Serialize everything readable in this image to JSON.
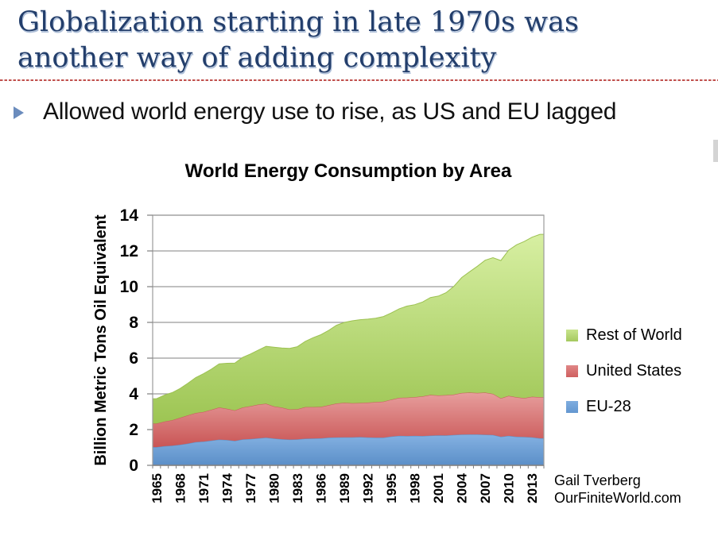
{
  "slide": {
    "title_line1": "Globalization starting in late 1970s was",
    "title_line2": "another way of adding complexity",
    "bullet": "Allowed world energy use to rise, as US and EU lagged",
    "accent_colors": {
      "title_text": "#233e6b",
      "separator_dash": "#c0504d",
      "bullet_marker": "#6b8cbd"
    }
  },
  "chart": {
    "title": "World Energy Consumption by Area",
    "y_axis_label": "Billion Metric Tons Oil Equivalent",
    "legend": [
      {
        "label": "Rest of World",
        "color_top": "#c8e48d",
        "color_bottom": "#a5c95e"
      },
      {
        "label": "United States",
        "color_top": "#e08686",
        "color_bottom": "#cf5f5f"
      },
      {
        "label": "EU-28",
        "color_top": "#7fade0",
        "color_bottom": "#6397d0"
      }
    ],
    "attribution_line1": "Gail Tverberg",
    "attribution_line2": "OurFiniteWorld.com"
  },
  "chart_data": {
    "type": "area",
    "stacked": true,
    "title": "World Energy Consumption by Area",
    "xlabel": "",
    "ylabel": "Billion Metric Tons Oil Equivalent",
    "ylim": [
      0,
      14
    ],
    "ytick_interval": 2,
    "grid": true,
    "legend_position": "right",
    "x": [
      1965,
      1966,
      1967,
      1968,
      1969,
      1970,
      1971,
      1972,
      1973,
      1974,
      1975,
      1976,
      1977,
      1978,
      1979,
      1980,
      1981,
      1982,
      1983,
      1984,
      1985,
      1986,
      1987,
      1988,
      1989,
      1990,
      1991,
      1992,
      1993,
      1994,
      1995,
      1996,
      1997,
      1998,
      1999,
      2000,
      2001,
      2002,
      2003,
      2004,
      2005,
      2006,
      2007,
      2008,
      2009,
      2010,
      2011,
      2012,
      2013,
      2014
    ],
    "xtick_labels": [
      "1965",
      "1968",
      "1971",
      "1974",
      "1977",
      "1980",
      "1983",
      "1986",
      "1989",
      "1992",
      "1995",
      "1998",
      "2001",
      "2004",
      "2007",
      "2010",
      "2013"
    ],
    "xtick_every": 3,
    "series": [
      {
        "name": "EU-28",
        "color": "#6fa2d8",
        "color_top": "#84b1e2",
        "color_bottom": "#5b8fc8",
        "edge": "#5c90c7",
        "values": [
          1.02,
          1.07,
          1.1,
          1.15,
          1.22,
          1.3,
          1.33,
          1.38,
          1.44,
          1.42,
          1.37,
          1.45,
          1.47,
          1.51,
          1.55,
          1.5,
          1.46,
          1.44,
          1.45,
          1.49,
          1.5,
          1.51,
          1.55,
          1.56,
          1.57,
          1.57,
          1.58,
          1.56,
          1.55,
          1.55,
          1.61,
          1.65,
          1.64,
          1.65,
          1.64,
          1.66,
          1.68,
          1.67,
          1.7,
          1.72,
          1.73,
          1.73,
          1.71,
          1.7,
          1.6,
          1.65,
          1.6,
          1.59,
          1.57,
          1.51
        ]
      },
      {
        "name": "United States",
        "color": "#d96a6a",
        "color_top": "#e79e9d",
        "color_bottom": "#c95555",
        "edge": "#c75a59",
        "values": [
          1.32,
          1.38,
          1.43,
          1.51,
          1.58,
          1.63,
          1.66,
          1.73,
          1.8,
          1.75,
          1.7,
          1.79,
          1.84,
          1.89,
          1.9,
          1.8,
          1.77,
          1.69,
          1.69,
          1.77,
          1.76,
          1.76,
          1.82,
          1.9,
          1.93,
          1.91,
          1.91,
          1.95,
          1.99,
          2.02,
          2.07,
          2.13,
          2.15,
          2.17,
          2.22,
          2.28,
          2.23,
          2.26,
          2.26,
          2.33,
          2.34,
          2.32,
          2.36,
          2.3,
          2.15,
          2.24,
          2.21,
          2.17,
          2.27,
          2.3
        ]
      },
      {
        "name": "Rest of World",
        "color": "#a9cd68",
        "color_top": "#d7efa2",
        "color_bottom": "#9dc553",
        "edge": "#9cc151",
        "values": [
          1.39,
          1.48,
          1.54,
          1.64,
          1.79,
          1.98,
          2.14,
          2.27,
          2.44,
          2.54,
          2.65,
          2.8,
          2.92,
          3.05,
          3.21,
          3.31,
          3.34,
          3.41,
          3.5,
          3.68,
          3.88,
          4.04,
          4.18,
          4.38,
          4.5,
          4.61,
          4.66,
          4.67,
          4.69,
          4.76,
          4.85,
          4.98,
          5.12,
          5.17,
          5.28,
          5.45,
          5.56,
          5.73,
          6.06,
          6.46,
          6.76,
          7.09,
          7.41,
          7.62,
          7.71,
          8.15,
          8.53,
          8.77,
          8.93,
          9.12
        ]
      }
    ]
  }
}
